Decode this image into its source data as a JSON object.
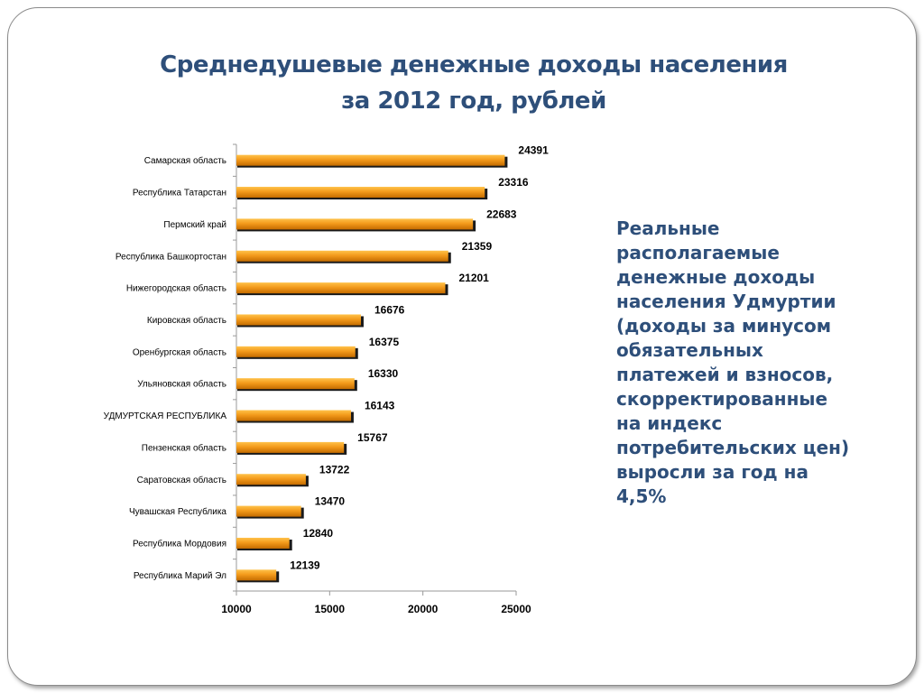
{
  "slide": {
    "title_line1": "Среднедушевые денежные доходы населения",
    "title_line2": "за 2012 год, рублей",
    "note_lines": [
      "Реальные",
      "располагаемые",
      "денежные доходы",
      "населения Удмуртии",
      "(доходы за минусом",
      "обязательных",
      "платежей и взносов,",
      "скорректированные",
      "на индекс",
      "потребительских цен)",
      "выросли за год на",
      "4,5%"
    ]
  },
  "colors": {
    "bar_light": "#ffc24a",
    "bar_mid": "#f39a1b",
    "bar_dark": "#c46c00",
    "shadow": "#1a1a1a",
    "title": "#2e4f7a"
  },
  "chart_data": {
    "type": "bar",
    "orientation": "horizontal",
    "title": "Среднедушевые денежные доходы населения за 2012 год, рублей",
    "categories": [
      "Самарская область",
      "Республика Татарстан",
      "Пермский край",
      "Республика Башкортостан",
      "Нижегородская область",
      "Кировская область",
      "Оренбургская область",
      "Ульяновская область",
      "УДМУРТСКАЯ РЕСПУБЛИКА",
      "Пензенская область",
      "Саратовская область",
      "Чувашская Республика",
      "Республика Мордовия",
      "Республика Марий Эл"
    ],
    "values": [
      24391,
      23316,
      22683,
      21359,
      21201,
      16676,
      16375,
      16330,
      16143,
      15767,
      13722,
      13470,
      12840,
      12139
    ],
    "xlim": [
      10000,
      25000
    ],
    "xticks": [
      "10000",
      "15000",
      "20000",
      "25000"
    ],
    "xlabel": "",
    "ylabel": "",
    "grid": false,
    "legend": "none"
  }
}
